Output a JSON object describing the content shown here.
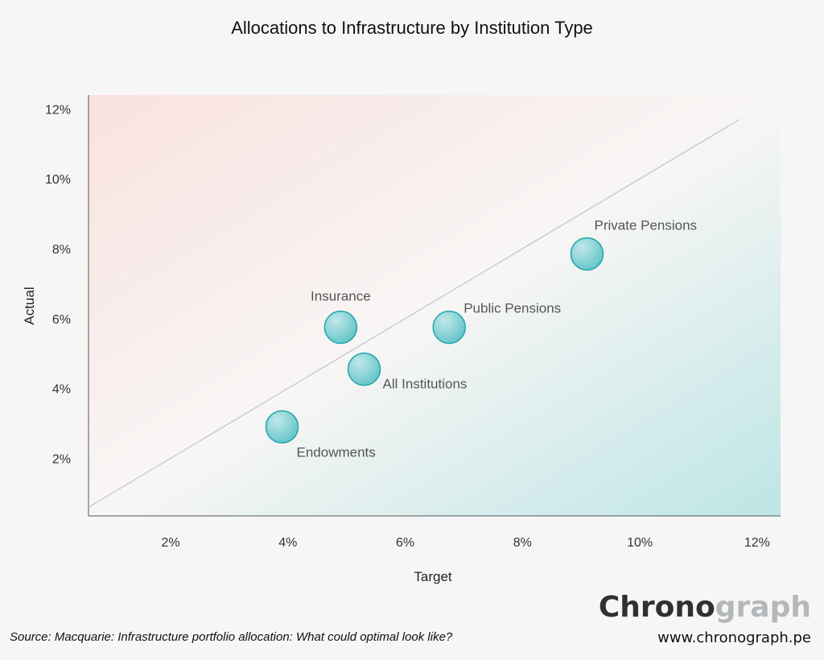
{
  "chart_data": {
    "type": "scatter",
    "title": "Allocations to Infrastructure by Institution Type",
    "xlabel": "Target",
    "ylabel": "Actual",
    "xlim": [
      0.6,
      12.4
    ],
    "ylim": [
      0.35,
      12.4
    ],
    "x_ticks": [
      {
        "v": 2,
        "label": "2%"
      },
      {
        "v": 4,
        "label": "4%"
      },
      {
        "v": 6,
        "label": "6%"
      },
      {
        "v": 8,
        "label": "8%"
      },
      {
        "v": 10,
        "label": "10%"
      },
      {
        "v": 12,
        "label": "12%"
      }
    ],
    "y_ticks": [
      {
        "v": 2,
        "label": "2%"
      },
      {
        "v": 4,
        "label": "4%"
      },
      {
        "v": 6,
        "label": "6%"
      },
      {
        "v": 8,
        "label": "8%"
      },
      {
        "v": 10,
        "label": "10%"
      },
      {
        "v": 12,
        "label": "12%"
      }
    ],
    "reference_line": "y = x",
    "grid": false,
    "points": [
      {
        "name": "Endowments",
        "x": 3.9,
        "y": 2.9,
        "label_pos": "below-right"
      },
      {
        "name": "Insurance",
        "x": 4.9,
        "y": 5.75,
        "label_pos": "above"
      },
      {
        "name": "All Institutions",
        "x": 5.3,
        "y": 4.55,
        "label_pos": "right-below"
      },
      {
        "name": "Public Pensions",
        "x": 6.75,
        "y": 5.75,
        "label_pos": "above-right"
      },
      {
        "name": "Private Pensions",
        "x": 9.1,
        "y": 7.85,
        "label_pos": "above-right"
      }
    ],
    "colors": {
      "point": "#7fcfd2",
      "point_stroke": "#1fa6ab",
      "upper": "#f9e3e1",
      "lower": "#bfe6e6"
    }
  },
  "source": "Source: Macquarie: Infrastructure portfolio allocation: What could optimal look like?",
  "logo": {
    "part1": "Chrono",
    "part2": "graph"
  },
  "url": "www.chronograph.pe"
}
